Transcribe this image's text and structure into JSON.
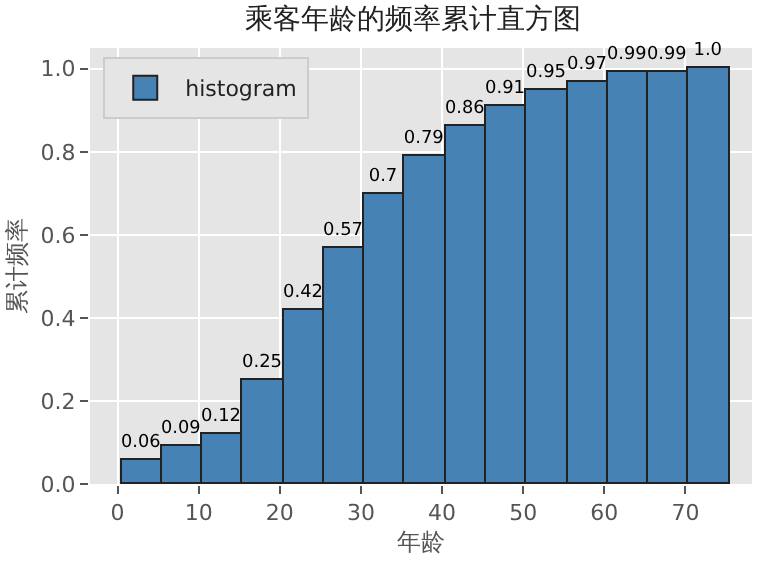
{
  "chart_data": {
    "type": "histogram",
    "title": "乘客年龄的频率累计直方图",
    "xlabel": "年龄",
    "ylabel": "累计频率",
    "bins": [
      0.42,
      5.42,
      10.42,
      15.42,
      20.42,
      25.42,
      30.42,
      35.42,
      40.42,
      45.42,
      50.42,
      55.42,
      60.42,
      65.42,
      70.42,
      75.42
    ],
    "series": [
      {
        "name": "histogram",
        "color": "#4682b4",
        "values": [
          0.06,
          0.09,
          0.12,
          0.25,
          0.42,
          0.57,
          0.7,
          0.79,
          0.86,
          0.91,
          0.95,
          0.97,
          0.99,
          0.99,
          1.0
        ],
        "value_labels": [
          "0.06",
          "0.09",
          "0.12",
          "0.25",
          "0.42",
          "0.57",
          "0.7",
          "0.79",
          "0.86",
          "0.91",
          "0.95",
          "0.97",
          "0.99",
          "0.99",
          "1.0"
        ]
      }
    ],
    "xlim": [
      -3.4,
      78.2
    ],
    "xticks": [
      0,
      10,
      20,
      30,
      40,
      50,
      60,
      70
    ],
    "ylim": [
      0,
      1.05
    ],
    "yticks": [
      {
        "value": 0,
        "label": "0.0"
      },
      0.2,
      0.4,
      0.6,
      0.8,
      {
        "value": 1,
        "label": "1.0"
      }
    ],
    "grid": true,
    "legend": "top left"
  }
}
